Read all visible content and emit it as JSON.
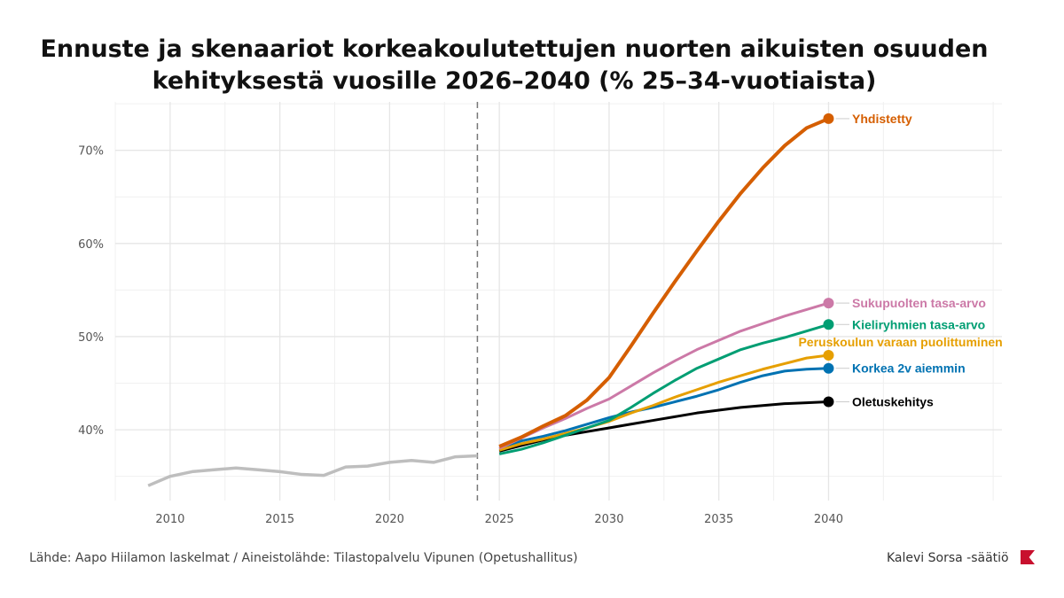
{
  "chart_data": {
    "type": "line",
    "title_line1": "Ennuste ja skenaariot korkeakoulutettujen nuorten aikuisten osuuden",
    "title_line2": "kehityksestä vuosille 2026–2040 (% 25–34-vuotiaista)",
    "xlim": [
      2007.5,
      2047.9
    ],
    "ylim": [
      32.4,
      75.2
    ],
    "x_ticks": [
      2010,
      2015,
      2020,
      2025,
      2030,
      2035,
      2040
    ],
    "x_tick_labels": [
      "2010",
      "2015",
      "2020",
      "2025",
      "2030",
      "2035",
      "2040"
    ],
    "y_ticks": [
      40,
      50,
      60,
      70
    ],
    "y_tick_labels": [
      "40%",
      "50%",
      "60%",
      "70%"
    ],
    "grid": true,
    "forecast_start_marker": 2024,
    "historical": {
      "color": "#BEBEBE",
      "x": [
        2009,
        2010,
        2011,
        2012,
        2013,
        2014,
        2015,
        2016,
        2017,
        2018,
        2019,
        2020,
        2021,
        2022,
        2023,
        2024
      ],
      "y": [
        34.0,
        35.0,
        35.5,
        35.7,
        35.9,
        35.7,
        35.5,
        35.2,
        35.1,
        36.0,
        36.1,
        36.5,
        36.7,
        36.5,
        37.1,
        37.2
      ]
    },
    "series": [
      {
        "name": "Yhdistetty",
        "color": "#D55E00",
        "width": 4,
        "x": [
          2025,
          2026,
          2027,
          2028,
          2029,
          2030,
          2031,
          2032,
          2033,
          2034,
          2035,
          2036,
          2037,
          2038,
          2039,
          2040
        ],
        "y": [
          38.2,
          39.2,
          40.4,
          41.5,
          43.2,
          45.6,
          49.0,
          52.5,
          55.9,
          59.2,
          62.4,
          65.4,
          68.1,
          70.5,
          72.4,
          73.4
        ]
      },
      {
        "name": "Sukupuolten tasa-arvo",
        "color": "#CC79A7",
        "width": 3,
        "x": [
          2025,
          2026,
          2027,
          2028,
          2029,
          2030,
          2031,
          2032,
          2033,
          2034,
          2035,
          2036,
          2037,
          2038,
          2039,
          2040
        ],
        "y": [
          38.0,
          39.1,
          40.2,
          41.2,
          42.3,
          43.3,
          44.7,
          46.1,
          47.4,
          48.6,
          49.6,
          50.6,
          51.4,
          52.2,
          52.9,
          53.6
        ]
      },
      {
        "name": "Kieliryhmien tasa-arvo",
        "color": "#009E73",
        "width": 3,
        "x": [
          2025,
          2026,
          2027,
          2028,
          2029,
          2030,
          2031,
          2032,
          2033,
          2034,
          2035,
          2036,
          2037,
          2038,
          2039,
          2040
        ],
        "y": [
          37.4,
          37.9,
          38.6,
          39.4,
          40.2,
          41.0,
          42.4,
          43.9,
          45.3,
          46.6,
          47.6,
          48.6,
          49.3,
          49.9,
          50.6,
          51.3
        ]
      },
      {
        "name": "Peruskoulun varaan puolittuminen",
        "color": "#E69F00",
        "width": 3,
        "x": [
          2025,
          2026,
          2027,
          2028,
          2029,
          2030,
          2031,
          2032,
          2033,
          2034,
          2035,
          2036,
          2037,
          2038,
          2039,
          2040
        ],
        "y": [
          37.8,
          38.5,
          39.0,
          39.6,
          40.2,
          40.9,
          41.8,
          42.6,
          43.5,
          44.3,
          45.1,
          45.8,
          46.5,
          47.1,
          47.7,
          48.0
        ]
      },
      {
        "name": "Korkea 2v aiemmin",
        "color": "#0072B2",
        "width": 3,
        "x": [
          2025,
          2026,
          2027,
          2028,
          2029,
          2030,
          2031,
          2032,
          2033,
          2034,
          2035,
          2036,
          2037,
          2038,
          2039,
          2040
        ],
        "y": [
          38.0,
          38.8,
          39.3,
          39.9,
          40.6,
          41.3,
          41.9,
          42.4,
          43.0,
          43.6,
          44.3,
          45.1,
          45.8,
          46.3,
          46.5,
          46.6
        ]
      },
      {
        "name": "Oletuskehitys",
        "color": "#000000",
        "width": 3,
        "x": [
          2025,
          2026,
          2027,
          2028,
          2029,
          2030,
          2031,
          2032,
          2033,
          2034,
          2035,
          2036,
          2037,
          2038,
          2039,
          2040
        ],
        "y": [
          37.7,
          38.3,
          38.9,
          39.4,
          39.8,
          40.2,
          40.6,
          41.0,
          41.4,
          41.8,
          42.1,
          42.4,
          42.6,
          42.8,
          42.9,
          43.0
        ]
      }
    ]
  },
  "footer": {
    "source": "Lähde: Aapo Hiilamon laskelmat  / Aineistolähde: Tilastopalvelu Vipunen (Opetushallitus)",
    "brand": "Kalevi Sorsa -säätiö",
    "brand_color": "#C8102E"
  }
}
